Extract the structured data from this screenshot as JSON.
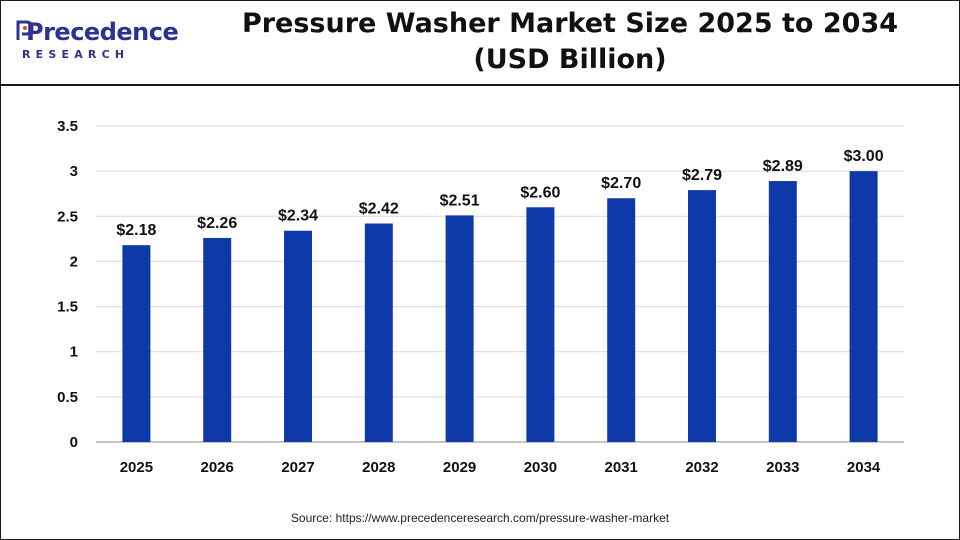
{
  "header": {
    "logo_word": "Precedence",
    "logo_sub": "RESEARCH",
    "title_line1": "Pressure Washer Market Size 2025 to 2034",
    "title_line2": "(USD Billion)"
  },
  "source": "Source: https://www.precedenceresearch.com/pressure-washer-market",
  "colors": {
    "bar": "#0e3aa9",
    "brand": "#2e3192",
    "grid": "#d9d9d9",
    "axis": "#b0b0b0"
  },
  "chart_data": {
    "type": "bar",
    "categories": [
      "2025",
      "2026",
      "2027",
      "2028",
      "2029",
      "2030",
      "2031",
      "2032",
      "2033",
      "2034"
    ],
    "values": [
      2.18,
      2.26,
      2.34,
      2.42,
      2.51,
      2.6,
      2.7,
      2.79,
      2.89,
      3.0
    ],
    "data_labels": [
      "$2.18",
      "$2.26",
      "$2.34",
      "$2.42",
      "$2.51",
      "$2.60",
      "$2.70",
      "$2.79",
      "$2.89",
      "$3.00"
    ],
    "yticks": [
      "0",
      "0.5",
      "1",
      "1.5",
      "2",
      "2.5",
      "3",
      "3.5"
    ],
    "ytick_values": [
      0,
      0.5,
      1,
      1.5,
      2,
      2.5,
      3,
      3.5
    ],
    "ylim": [
      0,
      3.5
    ],
    "grid": true,
    "legend": "none"
  }
}
